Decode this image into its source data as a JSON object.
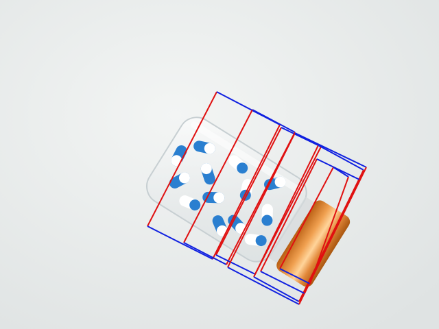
{
  "scene": {
    "subject": "glass-pill-bottle",
    "annotation_line_colors": {
      "long_edge": "#e01010",
      "short_edge": "#1020e0"
    },
    "box_count": 7,
    "capsule_colors": [
      "#2a7fd0",
      "#ffffff"
    ],
    "cap_color": "#d9822a"
  }
}
